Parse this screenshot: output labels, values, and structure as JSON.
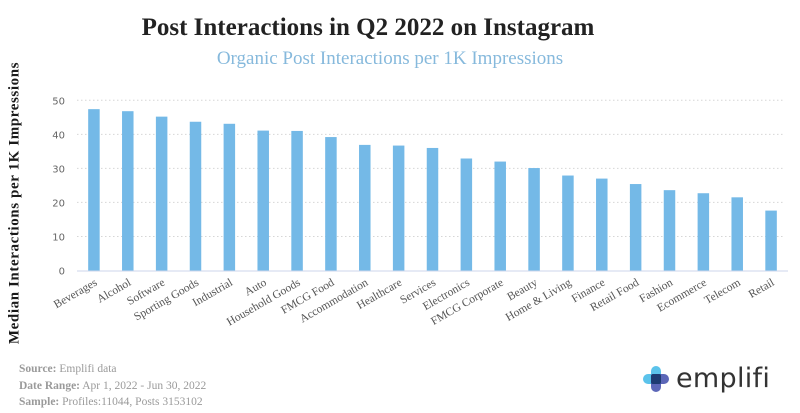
{
  "chart_data": {
    "type": "bar",
    "title": "Post Interactions in Q2 2022 on Instagram",
    "subtitle": "Organic Post Interactions per 1K Impressions",
    "xlabel": "",
    "ylabel": "Median Interactions per 1K Impressions",
    "ylim": [
      0,
      50
    ],
    "yticks": [
      0,
      10,
      20,
      30,
      40,
      50
    ],
    "grid": true,
    "legend": "none",
    "bar_color": "#74b9e7",
    "categories": [
      "Beverages",
      "Alcohol",
      "Software",
      "Sporting Goods",
      "Industrial",
      "Auto",
      "Household Goods",
      "FMCG Food",
      "Accommodation",
      "Healthcare",
      "Services",
      "Electronics",
      "FMCG Corporate",
      "Beauty",
      "Home & Living",
      "Finance",
      "Retail Food",
      "Fashion",
      "Ecommerce",
      "Telecom",
      "Retail"
    ],
    "values": [
      47.4,
      46.8,
      45.2,
      43.7,
      43.1,
      41.1,
      41.0,
      39.2,
      36.9,
      36.7,
      36.0,
      32.9,
      32.0,
      30.1,
      27.9,
      27.0,
      25.4,
      23.6,
      22.7,
      21.5,
      17.6
    ]
  },
  "footer": {
    "source_label": "Source:",
    "source_value": "Emplifi data",
    "date_label": "Date Range:",
    "date_value": "Apr 1, 2022 - Jun 30, 2022",
    "sample_label": "Sample:",
    "sample_value": "Profiles:11044, Posts 3153102"
  },
  "logo": {
    "text": "emplifi",
    "colors": {
      "light": "#5bc3eb",
      "dark": "#1d3b72",
      "mid": "#4a56b0"
    }
  }
}
